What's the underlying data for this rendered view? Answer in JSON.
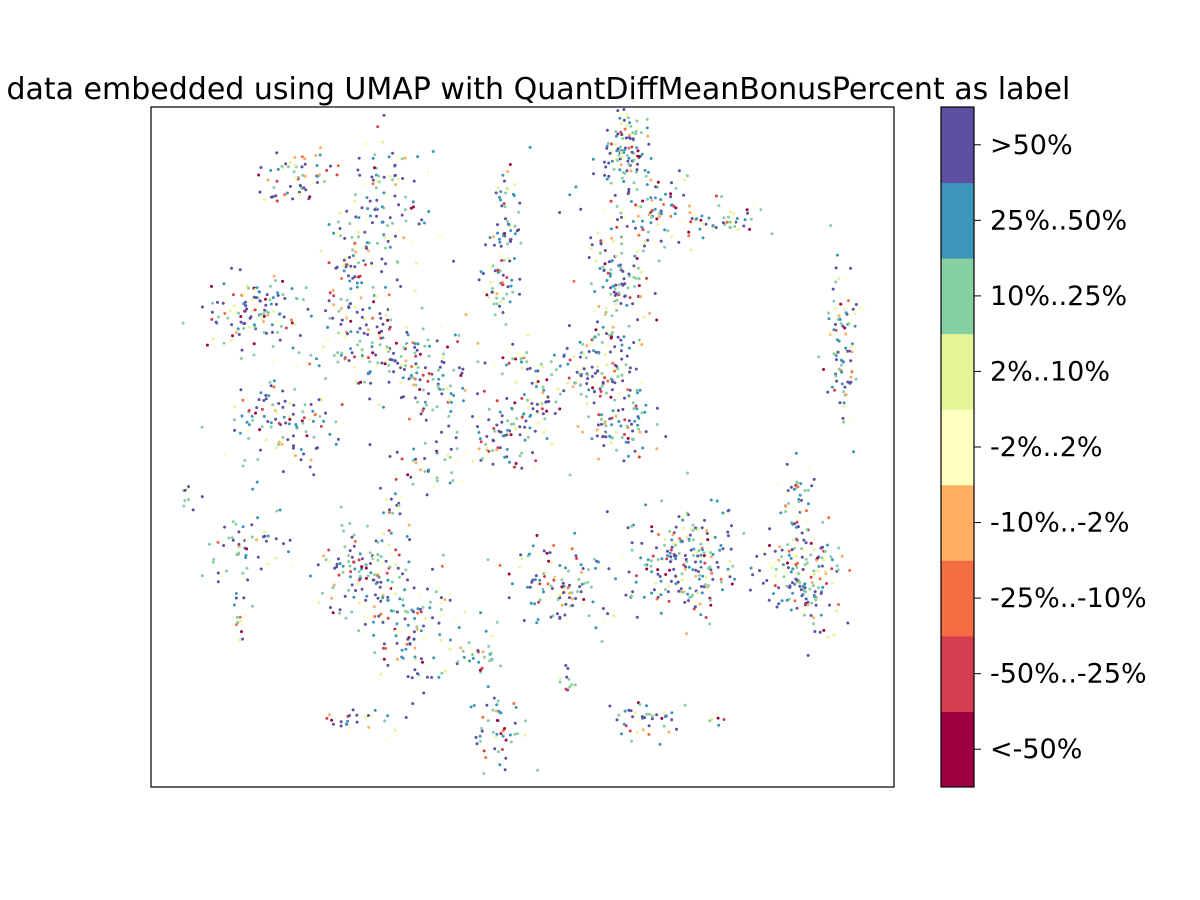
{
  "chart_data": {
    "type": "scatter",
    "title": "G data embedded using UMAP with QuantDiffMeanBonusPercent as label",
    "xlabel": "",
    "ylabel": "",
    "grid": false,
    "axis_ticks": false,
    "colorbar": {
      "position": "right",
      "labels": [
        "<-50%",
        "-50%..-25%",
        "-25%..-10%",
        "-10%..-2%",
        "-2%..2%",
        "2%..10%",
        "10%..25%",
        "25%..50%",
        ">50%"
      ],
      "colors": [
        "#9e0142",
        "#d53e4f",
        "#f46d43",
        "#fdae61",
        "#fee08b",
        "#e6f598",
        "#abdda4",
        "#66c2a5",
        "#3288bd"
      ]
    },
    "point_colors": [
      "#9e0142",
      "#d53e4f",
      "#f46d43",
      "#fdae61",
      "#ffffbf",
      "#e6f598",
      "#86cfa0",
      "#3b96ba",
      "#5e4fa2"
    ],
    "point_mix": [
      0.05,
      0.04,
      0.03,
      0.05,
      0.07,
      0.08,
      0.22,
      0.18,
      0.28
    ],
    "xlim": [
      0,
      100
    ],
    "ylim": [
      0,
      100
    ],
    "clusters": [
      {
        "x": 20,
        "y": 90,
        "sx": 3,
        "sy": 2,
        "n": 60
      },
      {
        "x": 32,
        "y": 86,
        "sx": 3,
        "sy": 5,
        "n": 90
      },
      {
        "x": 27,
        "y": 76,
        "sx": 2.5,
        "sy": 6,
        "n": 110
      },
      {
        "x": 14,
        "y": 70,
        "sx": 3,
        "sy": 3,
        "n": 120
      },
      {
        "x": 30,
        "y": 64,
        "sx": 5,
        "sy": 3,
        "n": 130
      },
      {
        "x": 18,
        "y": 53,
        "sx": 4,
        "sy": 3,
        "n": 110
      },
      {
        "x": 38,
        "y": 60,
        "sx": 3,
        "sy": 3,
        "n": 80
      },
      {
        "x": 48,
        "y": 83,
        "sx": 1.2,
        "sy": 5,
        "n": 60
      },
      {
        "x": 46,
        "y": 73,
        "sx": 1.5,
        "sy": 2,
        "n": 40
      },
      {
        "x": 64,
        "y": 94,
        "sx": 1.5,
        "sy": 3,
        "n": 110
      },
      {
        "x": 68,
        "y": 85,
        "sx": 4,
        "sy": 3,
        "n": 100
      },
      {
        "x": 77,
        "y": 83,
        "sx": 3,
        "sy": 1,
        "n": 40
      },
      {
        "x": 63,
        "y": 74,
        "sx": 2.5,
        "sy": 4,
        "n": 110
      },
      {
        "x": 60,
        "y": 62,
        "sx": 3,
        "sy": 3,
        "n": 130
      },
      {
        "x": 63,
        "y": 52,
        "sx": 2.5,
        "sy": 3,
        "n": 80
      },
      {
        "x": 93,
        "y": 65,
        "sx": 1,
        "sy": 6,
        "n": 90
      },
      {
        "x": 48,
        "y": 52,
        "sx": 3,
        "sy": 3,
        "n": 90
      },
      {
        "x": 50,
        "y": 62,
        "sx": 1.5,
        "sy": 1.5,
        "n": 30
      },
      {
        "x": 53,
        "y": 56,
        "sx": 1.2,
        "sy": 2,
        "n": 30
      },
      {
        "x": 72,
        "y": 33,
        "sx": 4,
        "sy": 4,
        "n": 220
      },
      {
        "x": 88,
        "y": 31,
        "sx": 3,
        "sy": 4,
        "n": 170
      },
      {
        "x": 87,
        "y": 42,
        "sx": 1.5,
        "sy": 3,
        "n": 40
      },
      {
        "x": 55,
        "y": 30,
        "sx": 4,
        "sy": 3,
        "n": 120
      },
      {
        "x": 28,
        "y": 32,
        "sx": 4,
        "sy": 4,
        "n": 130
      },
      {
        "x": 36,
        "y": 24,
        "sx": 3,
        "sy": 5,
        "n": 120
      },
      {
        "x": 13,
        "y": 35,
        "sx": 2.5,
        "sy": 4,
        "n": 60
      },
      {
        "x": 12,
        "y": 24,
        "sx": 0.6,
        "sy": 1,
        "n": 10
      },
      {
        "x": 5,
        "y": 43,
        "sx": 0.4,
        "sy": 1,
        "n": 8
      },
      {
        "x": 44,
        "y": 19,
        "sx": 2,
        "sy": 1,
        "n": 25
      },
      {
        "x": 47,
        "y": 8,
        "sx": 2,
        "sy": 3,
        "n": 50
      },
      {
        "x": 66,
        "y": 10,
        "sx": 2,
        "sy": 1.5,
        "n": 40
      },
      {
        "x": 28,
        "y": 10,
        "sx": 3,
        "sy": 0.8,
        "n": 25
      },
      {
        "x": 38,
        "y": 47,
        "sx": 3,
        "sy": 2,
        "n": 40
      },
      {
        "x": 56,
        "y": 15,
        "sx": 0.5,
        "sy": 1.5,
        "n": 12
      },
      {
        "x": 77,
        "y": 10,
        "sx": 0.8,
        "sy": 0.4,
        "n": 6
      },
      {
        "x": 33,
        "y": 41,
        "sx": 1,
        "sy": 1,
        "n": 12
      }
    ]
  }
}
